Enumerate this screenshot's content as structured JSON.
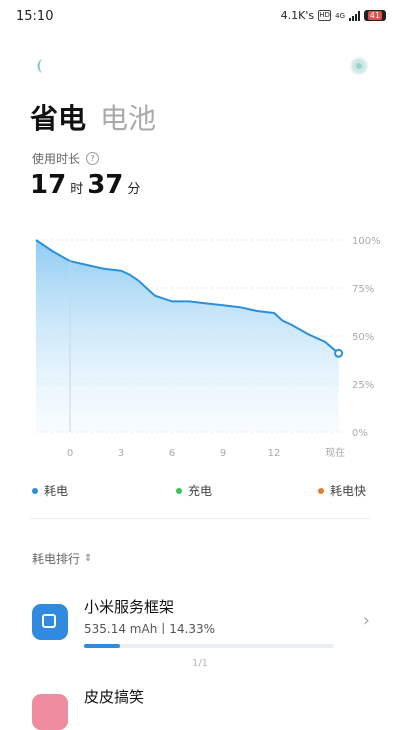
{
  "status_bar": {
    "time": "15:10",
    "network_speed": "4.1K's",
    "sim_label": "HD",
    "network_type": "4G",
    "battery_level": "41"
  },
  "header": {
    "tabs": [
      {
        "label": "省电",
        "active": true
      },
      {
        "label": "电池",
        "active": false
      }
    ]
  },
  "usage": {
    "label": "使用时长",
    "hours": "17",
    "hours_unit": "时",
    "minutes": "37",
    "minutes_unit": "分"
  },
  "chart_data": {
    "type": "area",
    "x_tick_labels": [
      "0",
      "3",
      "6",
      "9",
      "12",
      "现在"
    ],
    "y_tick_labels": [
      "100%",
      "75%",
      "50%",
      "25%",
      "0%"
    ],
    "ylim": [
      0,
      100
    ],
    "x_range": [
      -2,
      16
    ],
    "series": [
      {
        "color": "#2b90d9",
        "x": [
          -2,
          -1,
          0,
          1,
          2,
          3,
          3.5,
          4,
          5,
          6,
          7,
          8,
          9,
          10,
          11,
          12,
          12.5,
          13,
          14,
          15,
          15.8
        ],
        "y": [
          100,
          94,
          89,
          87,
          85,
          84,
          82,
          79,
          71,
          68,
          68,
          67,
          66,
          65,
          63,
          62,
          58,
          56,
          51,
          47,
          41
        ]
      }
    ]
  },
  "legend": [
    {
      "label": "耗电",
      "color": "#2b90d9"
    },
    {
      "label": "充电",
      "color": "#3cc45a"
    },
    {
      "label": "耗电快",
      "color": "#e87b2f"
    }
  ],
  "ranking": {
    "title": "耗电排行",
    "apps": [
      {
        "name": "小米服务框架",
        "stats": "535.14 mAh丨14.33%",
        "share": 14.33
      },
      {
        "name": "皮皮搞笑",
        "stats": "",
        "share": 0
      }
    ],
    "page_indicator": "1/1"
  }
}
